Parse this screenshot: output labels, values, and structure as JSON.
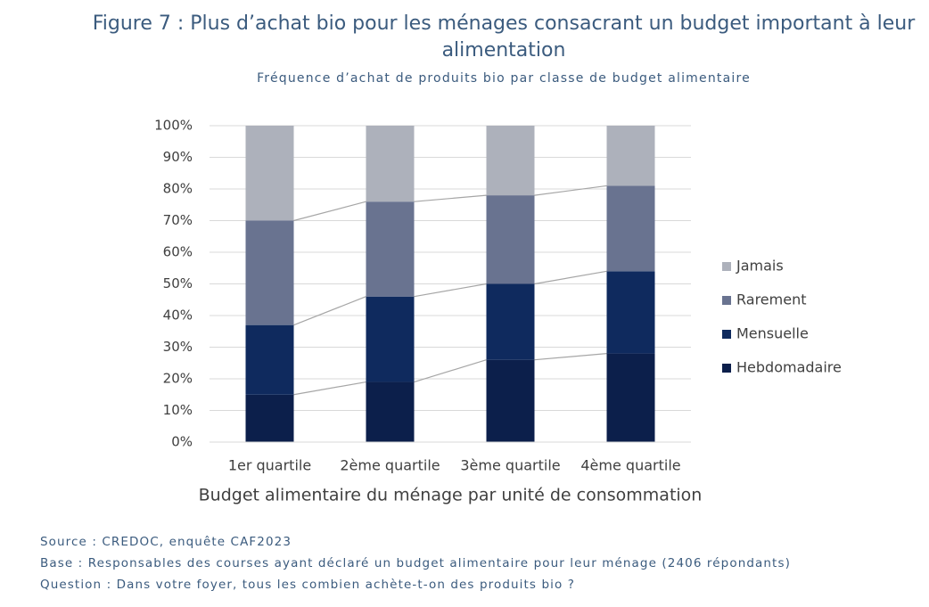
{
  "chart_data": {
    "type": "stacked_bar",
    "title": "Figure 7 : Plus d’achat bio pour les ménages consacrant un budget important à leur alimentation",
    "subtitle": "Fréquence d’achat de produits bio par classe de budget alimentaire",
    "x_label": "Budget alimentaire du ménage par unité de consommation",
    "categories": [
      "1er quartile",
      "2ème quartile",
      "3ème quartile",
      "4ème quartile"
    ],
    "series": [
      {
        "name": "Hebdomadaire",
        "color": "#0c1f4b",
        "values": [
          15,
          19,
          26,
          28
        ]
      },
      {
        "name": "Mensuelle",
        "color": "#0f2a5e",
        "values": [
          22,
          27,
          24,
          26
        ]
      },
      {
        "name": "Rarement",
        "color": "#697390",
        "values": [
          33,
          30,
          28,
          27
        ]
      },
      {
        "name": "Jamais",
        "color": "#adb1bb",
        "values": [
          30,
          24,
          22,
          19
        ]
      }
    ],
    "ylim": [
      0,
      100
    ],
    "yticks": [
      {
        "value": 0,
        "label": "0%"
      },
      {
        "value": 10,
        "label": "10%"
      },
      {
        "value": 20,
        "label": "20%"
      },
      {
        "value": 30,
        "label": "30%"
      },
      {
        "value": 40,
        "label": "40%"
      },
      {
        "value": 50,
        "label": "50%"
      },
      {
        "value": 60,
        "label": "60%"
      },
      {
        "value": 70,
        "label": "70%"
      },
      {
        "value": 80,
        "label": "80%"
      },
      {
        "value": 90,
        "label": "90%"
      },
      {
        "value": 100,
        "label": "100%"
      }
    ],
    "grid": true,
    "legend": "right"
  },
  "notes": [
    "Source : CREDOC, enquête CAF2023",
    "Base : Responsables des courses ayant déclaré un budget alimentaire pour leur ménage (2406 répondants)",
    "Question : Dans votre foyer, tous les combien achète-t-on des produits bio ?"
  ]
}
